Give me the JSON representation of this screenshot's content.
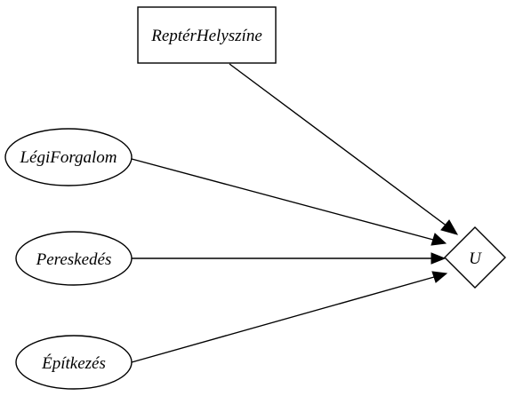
{
  "nodes": {
    "repter": {
      "label": "ReptérHelyszíne",
      "shape": "rectangle"
    },
    "legi": {
      "label": "LégiForgalom",
      "shape": "ellipse"
    },
    "pereskedes": {
      "label": "Pereskedés",
      "shape": "ellipse"
    },
    "epitkezes": {
      "label": "Építkezés",
      "shape": "ellipse"
    },
    "u": {
      "label": "U",
      "shape": "diamond"
    }
  },
  "edges": [
    {
      "from": "ReptérHelyszíne",
      "to": "U"
    },
    {
      "from": "LégiForgalom",
      "to": "U"
    },
    {
      "from": "Pereskedés",
      "to": "U"
    },
    {
      "from": "Építkezés",
      "to": "U"
    }
  ],
  "colors": {
    "stroke": "#000000",
    "fill": "#ffffff",
    "background": "#ffffff"
  }
}
